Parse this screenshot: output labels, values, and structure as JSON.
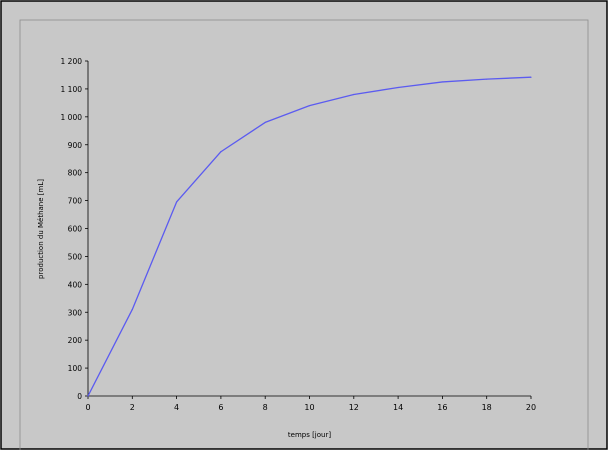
{
  "chart_data": {
    "type": "line",
    "title": "",
    "xlabel": "temps [jour]",
    "ylabel": "production  du Méthane [mL]",
    "xlim": [
      0,
      20
    ],
    "ylim": [
      0,
      1200
    ],
    "x_ticks": [
      0,
      2,
      4,
      6,
      8,
      10,
      12,
      14,
      16,
      18,
      20
    ],
    "x_tick_labels": [
      "0",
      "2",
      "4",
      "6",
      "8",
      "10",
      "12",
      "14",
      "16",
      "18",
      "20"
    ],
    "y_ticks": [
      0,
      100,
      200,
      300,
      400,
      500,
      600,
      700,
      800,
      900,
      1000,
      1100,
      1200
    ],
    "y_tick_labels": [
      "0",
      "100",
      "200",
      "300",
      "400",
      "500",
      "600",
      "700",
      "800",
      "900",
      "1 000",
      "1 100",
      "1 200"
    ],
    "grid": false,
    "legend": "none",
    "series": [
      {
        "color": "#5b5bf0",
        "x": [
          0,
          2,
          4,
          6,
          8,
          10,
          12,
          14,
          16,
          18,
          20
        ],
        "y": [
          0,
          310,
          695,
          875,
          980,
          1040,
          1080,
          1105,
          1125,
          1135,
          1142
        ]
      }
    ]
  },
  "colors": {
    "figure_background": "#c8c8c8",
    "plot_background": "#c8c8c8",
    "axis": "#000000"
  }
}
